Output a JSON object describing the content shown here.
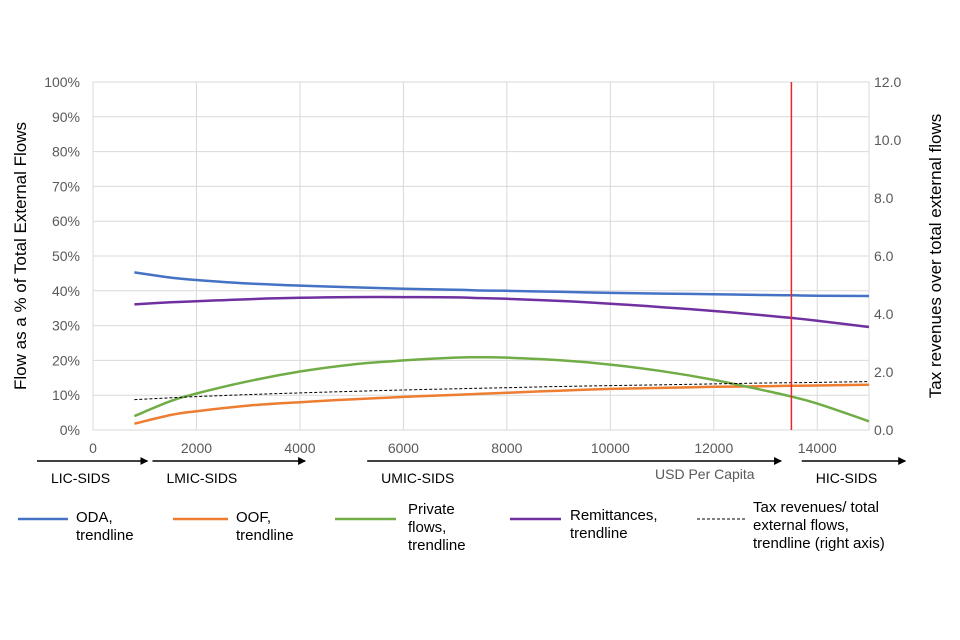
{
  "chart_data": {
    "type": "line",
    "x": [
      800,
      1500,
      2000,
      3000,
      4000,
      5000,
      6000,
      7000,
      7500,
      8000,
      9000,
      10000,
      11000,
      12000,
      13000,
      13500,
      14000,
      15000
    ],
    "xlim": [
      0,
      15000
    ],
    "x_ticks": [
      "0",
      "2000",
      "4000",
      "6000",
      "8000",
      "10000",
      "12000",
      "14000"
    ],
    "y_left_ticks": [
      "0%",
      "10%",
      "20%",
      "30%",
      "40%",
      "50%",
      "60%",
      "70%",
      "80%",
      "90%",
      "100%"
    ],
    "y_right_ticks": [
      "0.0",
      "2.0",
      "4.0",
      "6.0",
      "8.0",
      "10.0",
      "12.0"
    ],
    "ylim_left": [
      0,
      100
    ],
    "ylim_right": [
      0,
      12
    ],
    "ylabel_left": "Flow as a % of Total External Flows",
    "ylabel_right": "Tax revenues over total external flows",
    "series": [
      {
        "name": "ODA, trendline",
        "name_lines": [
          "ODA,",
          "trendline"
        ],
        "axis": "left",
        "color": "#4472C4",
        "dash": false,
        "values": [
          45.3,
          43.8,
          43.1,
          42.1,
          41.5,
          41.0,
          40.6,
          40.3,
          40.1,
          40.0,
          39.7,
          39.4,
          39.2,
          39.0,
          38.8,
          38.7,
          38.6,
          38.5
        ]
      },
      {
        "name": "OOF, trendline",
        "name_lines": [
          "OOF,",
          "trendline"
        ],
        "axis": "left",
        "color": "#ED7D31",
        "dash": false,
        "values": [
          1.8,
          4.3,
          5.4,
          7.0,
          8.0,
          8.8,
          9.5,
          10.1,
          10.4,
          10.7,
          11.3,
          11.8,
          12.1,
          12.4,
          12.6,
          12.7,
          12.8,
          13.0
        ]
      },
      {
        "name": "Private flows, trendline",
        "name_lines": [
          "Private",
          "flows,",
          "trendline"
        ],
        "axis": "left",
        "color": "#70AD47",
        "dash": false,
        "values": [
          4.0,
          8.3,
          10.5,
          14.0,
          16.8,
          18.8,
          20.0,
          20.8,
          20.9,
          20.8,
          20.1,
          18.8,
          16.9,
          14.4,
          11.3,
          9.6,
          7.6,
          2.5
        ]
      },
      {
        "name": "Remittances, trendline",
        "name_lines": [
          "Remittances,",
          "trendline"
        ],
        "axis": "left",
        "color": "#7030A0",
        "dash": false,
        "values": [
          36.1,
          36.7,
          37.0,
          37.6,
          38.0,
          38.2,
          38.2,
          38.1,
          37.9,
          37.7,
          37.1,
          36.3,
          35.3,
          34.2,
          32.9,
          32.2,
          31.4,
          29.6
        ]
      },
      {
        "name": "Tax revenues/ total external flows, trendline (right axis)",
        "name_lines": [
          "Tax revenues/ total",
          "external flows,",
          "trendline (right axis)"
        ],
        "axis": "right",
        "color": "#000000",
        "dash": true,
        "values": [
          1.05,
          1.11,
          1.15,
          1.22,
          1.28,
          1.33,
          1.38,
          1.42,
          1.44,
          1.46,
          1.5,
          1.53,
          1.56,
          1.59,
          1.62,
          1.63,
          1.64,
          1.67
        ]
      }
    ],
    "vertical_line": {
      "x": 13500,
      "color": "#E8262C"
    },
    "income_groups": [
      {
        "label": "LIC-SIDS",
        "from": 0,
        "to": 1050
      },
      {
        "label": "LMIC-SIDS",
        "from": 1150,
        "to": 4100
      },
      {
        "label": "UMIC-SIDS",
        "from": 5300,
        "to": 13300
      },
      {
        "label": "HIC-SIDS",
        "from": 13700,
        "to": 15700
      }
    ],
    "usd_label": "USD Per Capita",
    "grid": true,
    "legend_position": "bottom"
  }
}
